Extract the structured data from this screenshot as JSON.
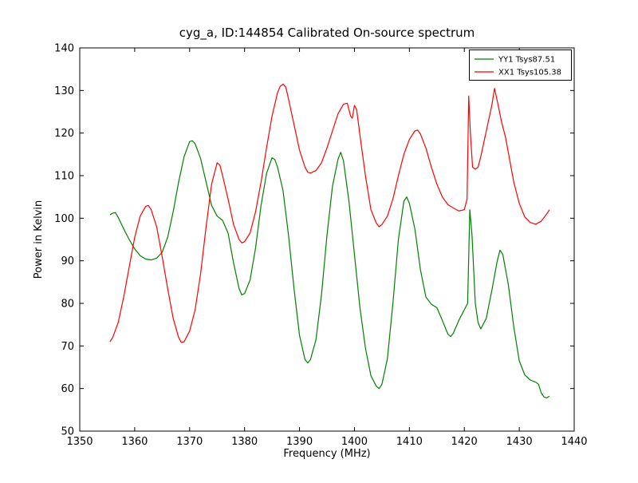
{
  "figure": {
    "background": "#ffffff",
    "axes_color": "#000000"
  },
  "chart_data": {
    "type": "line",
    "title": "cyg_a, ID:144854 Calibrated On-source spectrum",
    "xlabel": "Frequency (MHz)",
    "ylabel": "Power in Kelvin",
    "xlim": [
      1350,
      1440
    ],
    "ylim": [
      50,
      140
    ],
    "x_ticks": [
      1350,
      1360,
      1370,
      1380,
      1390,
      1400,
      1410,
      1420,
      1430,
      1440
    ],
    "y_ticks": [
      50,
      60,
      70,
      80,
      90,
      100,
      110,
      120,
      130,
      140
    ],
    "grid": false,
    "legend_position": "upper right",
    "series": [
      {
        "name": "YY1 Tsys87.51",
        "color": "#008000",
        "points": [
          [
            1355.5,
            100.8
          ],
          [
            1356,
            101.2
          ],
          [
            1356.5,
            101.3
          ],
          [
            1357,
            100.2
          ],
          [
            1358,
            97.5
          ],
          [
            1359,
            95
          ],
          [
            1360,
            92.8
          ],
          [
            1361,
            91.2
          ],
          [
            1362,
            90.4
          ],
          [
            1363,
            90.2
          ],
          [
            1364,
            90.6
          ],
          [
            1365,
            92
          ],
          [
            1366,
            95.5
          ],
          [
            1367,
            101.5
          ],
          [
            1368,
            108.5
          ],
          [
            1369,
            114.5
          ],
          [
            1370,
            118
          ],
          [
            1370.5,
            118.2
          ],
          [
            1371,
            117.5
          ],
          [
            1372,
            114
          ],
          [
            1373,
            108.5
          ],
          [
            1374,
            103
          ],
          [
            1375,
            100.5
          ],
          [
            1376,
            99.5
          ],
          [
            1377,
            96.5
          ],
          [
            1378,
            89.5
          ],
          [
            1379,
            83.5
          ],
          [
            1379.5,
            82
          ],
          [
            1380,
            82.3
          ],
          [
            1381,
            85.5
          ],
          [
            1382,
            93
          ],
          [
            1383,
            103
          ],
          [
            1384,
            110.5
          ],
          [
            1385,
            114.2
          ],
          [
            1385.5,
            113.8
          ],
          [
            1386,
            112
          ],
          [
            1387,
            106.5
          ],
          [
            1388,
            96
          ],
          [
            1389,
            83.5
          ],
          [
            1390,
            72.5
          ],
          [
            1391,
            66.8
          ],
          [
            1391.5,
            66
          ],
          [
            1392,
            66.8
          ],
          [
            1393,
            71.5
          ],
          [
            1394,
            82
          ],
          [
            1395,
            96
          ],
          [
            1396,
            107.5
          ],
          [
            1397,
            113.8
          ],
          [
            1397.5,
            115.5
          ],
          [
            1398,
            113.5
          ],
          [
            1399,
            104
          ],
          [
            1400,
            91.5
          ],
          [
            1401,
            79
          ],
          [
            1402,
            69.5
          ],
          [
            1403,
            63
          ],
          [
            1404,
            60.5
          ],
          [
            1404.5,
            60
          ],
          [
            1405,
            61
          ],
          [
            1406,
            67
          ],
          [
            1407,
            80
          ],
          [
            1408,
            95
          ],
          [
            1409,
            104
          ],
          [
            1409.5,
            105
          ],
          [
            1410,
            103.5
          ],
          [
            1411,
            97.5
          ],
          [
            1412,
            88
          ],
          [
            1413,
            81.5
          ],
          [
            1414,
            79.8
          ],
          [
            1415,
            79
          ],
          [
            1416,
            76
          ],
          [
            1417,
            72.8
          ],
          [
            1417.5,
            72.2
          ],
          [
            1418,
            73
          ],
          [
            1419,
            76
          ],
          [
            1420,
            78.5
          ],
          [
            1420.6,
            80
          ],
          [
            1421,
            102
          ],
          [
            1421.4,
            96
          ],
          [
            1422,
            80
          ],
          [
            1422.5,
            75.5
          ],
          [
            1423,
            74
          ],
          [
            1424,
            76.5
          ],
          [
            1425,
            83
          ],
          [
            1426,
            90
          ],
          [
            1426.5,
            92.5
          ],
          [
            1427,
            91.5
          ],
          [
            1428,
            84.5
          ],
          [
            1429,
            74.5
          ],
          [
            1430,
            66.5
          ],
          [
            1431,
            63.2
          ],
          [
            1432,
            62
          ],
          [
            1433,
            61.5
          ],
          [
            1433.5,
            61
          ],
          [
            1434,
            59
          ],
          [
            1434.5,
            58
          ],
          [
            1435,
            57.8
          ],
          [
            1435.5,
            58.2
          ]
        ]
      },
      {
        "name": "XX1 Tsys105.38",
        "color": "#ff0000",
        "points": [
          [
            1355.5,
            71
          ],
          [
            1356,
            72
          ],
          [
            1357,
            75.5
          ],
          [
            1358,
            81.5
          ],
          [
            1359,
            88.5
          ],
          [
            1360,
            95.5
          ],
          [
            1361,
            100.5
          ],
          [
            1362,
            102.8
          ],
          [
            1362.5,
            103
          ],
          [
            1363,
            102
          ],
          [
            1364,
            98
          ],
          [
            1365,
            91
          ],
          [
            1366,
            83.5
          ],
          [
            1367,
            76.5
          ],
          [
            1368,
            72
          ],
          [
            1368.5,
            70.8
          ],
          [
            1369,
            71
          ],
          [
            1370,
            73.5
          ],
          [
            1371,
            78.5
          ],
          [
            1372,
            87
          ],
          [
            1373,
            98
          ],
          [
            1374,
            108
          ],
          [
            1375,
            113
          ],
          [
            1375.5,
            112.5
          ],
          [
            1376,
            110
          ],
          [
            1377,
            104.5
          ],
          [
            1378,
            98.5
          ],
          [
            1379,
            95
          ],
          [
            1379.5,
            94.2
          ],
          [
            1380,
            94.5
          ],
          [
            1381,
            96.5
          ],
          [
            1382,
            101.5
          ],
          [
            1383,
            108.5
          ],
          [
            1384,
            116.5
          ],
          [
            1385,
            124
          ],
          [
            1386,
            129.5
          ],
          [
            1386.5,
            131
          ],
          [
            1387,
            131.5
          ],
          [
            1387.5,
            130.8
          ],
          [
            1388,
            128
          ],
          [
            1389,
            122
          ],
          [
            1390,
            116
          ],
          [
            1391,
            112
          ],
          [
            1391.5,
            110.8
          ],
          [
            1392,
            110.6
          ],
          [
            1393,
            111.2
          ],
          [
            1394,
            113
          ],
          [
            1395,
            116.5
          ],
          [
            1396,
            120.5
          ],
          [
            1397,
            124.5
          ],
          [
            1398,
            126.8
          ],
          [
            1398.7,
            127
          ],
          [
            1399.3,
            124
          ],
          [
            1399.6,
            123.5
          ],
          [
            1400,
            126.5
          ],
          [
            1400.4,
            125.5
          ],
          [
            1401,
            119.5
          ],
          [
            1402,
            110
          ],
          [
            1403,
            102
          ],
          [
            1404,
            98.8
          ],
          [
            1404.5,
            98
          ],
          [
            1405,
            98.5
          ],
          [
            1406,
            100.5
          ],
          [
            1407,
            104.5
          ],
          [
            1408,
            110
          ],
          [
            1409,
            115
          ],
          [
            1410,
            118.5
          ],
          [
            1411,
            120.5
          ],
          [
            1411.5,
            120.7
          ],
          [
            1412,
            119.8
          ],
          [
            1413,
            116.5
          ],
          [
            1414,
            112
          ],
          [
            1415,
            108
          ],
          [
            1416,
            105
          ],
          [
            1417,
            103.2
          ],
          [
            1418,
            102.4
          ],
          [
            1419,
            101.7
          ],
          [
            1420,
            102
          ],
          [
            1420.5,
            104.5
          ],
          [
            1420.8,
            128.7
          ],
          [
            1421.1,
            120
          ],
          [
            1421.5,
            112
          ],
          [
            1422,
            111.5
          ],
          [
            1422.5,
            112
          ],
          [
            1423,
            114.5
          ],
          [
            1424,
            120.5
          ],
          [
            1425,
            126.5
          ],
          [
            1425.5,
            130.5
          ],
          [
            1426,
            127.5
          ],
          [
            1426.8,
            122.5
          ],
          [
            1427.5,
            119
          ],
          [
            1428,
            115.5
          ],
          [
            1429,
            108.5
          ],
          [
            1430,
            103.5
          ],
          [
            1431,
            100.3
          ],
          [
            1432,
            99
          ],
          [
            1433,
            98.6
          ],
          [
            1434,
            99.3
          ],
          [
            1435,
            101
          ],
          [
            1435.5,
            102
          ]
        ]
      }
    ]
  }
}
